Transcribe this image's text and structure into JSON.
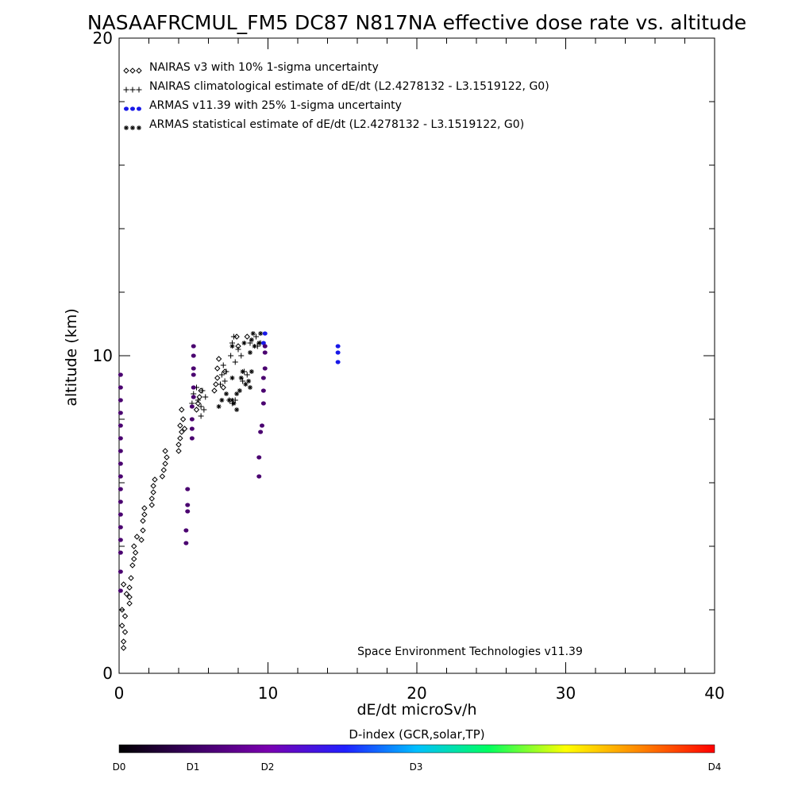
{
  "chart_data": {
    "type": "scatter",
    "title": "NASAAFRCMUL_FM5 DC87 N817NA effective dose rate vs. altitude",
    "xlabel": "dE/dt microSv/h",
    "ylabel": "altitude (km)",
    "xlim": [
      0,
      40
    ],
    "ylim": [
      0,
      20
    ],
    "x_ticks": [
      0,
      10,
      20,
      30,
      40
    ],
    "y_ticks": [
      0,
      10,
      20
    ],
    "grid": false,
    "legend_position": "top-left",
    "credit": "Space Environment Technologies v11.39",
    "colorbar": {
      "title": "D-index (GCR,solar,TP)",
      "labels": [
        {
          "text": "D0",
          "value": 0
        },
        {
          "text": "D1",
          "value": 1
        },
        {
          "text": "D2",
          "value": 2
        },
        {
          "text": "D3",
          "value": 3
        },
        {
          "text": "D4",
          "value": 4
        }
      ],
      "colors": [
        "#000000",
        "#7a00b0",
        "#2020ff",
        "#00c0ff",
        "#00ff60",
        "#ffff00",
        "#ff6000",
        "#ff0000"
      ]
    },
    "series": [
      {
        "name": "NAIRAS v3 with 10% 1-sigma uncertainty",
        "marker": "diamond",
        "color": "#000000",
        "points": [
          [
            0.3,
            0.8
          ],
          [
            0.3,
            1.0
          ],
          [
            0.4,
            1.3
          ],
          [
            0.2,
            1.5
          ],
          [
            0.4,
            1.8
          ],
          [
            0.2,
            2.0
          ],
          [
            0.5,
            2.5
          ],
          [
            0.3,
            2.8
          ],
          [
            0.7,
            2.2
          ],
          [
            0.7,
            2.4
          ],
          [
            0.7,
            2.7
          ],
          [
            0.8,
            3.0
          ],
          [
            0.9,
            3.4
          ],
          [
            1.0,
            3.6
          ],
          [
            1.1,
            3.8
          ],
          [
            1.0,
            4.0
          ],
          [
            1.2,
            4.3
          ],
          [
            1.5,
            4.2
          ],
          [
            1.6,
            4.5
          ],
          [
            1.6,
            4.8
          ],
          [
            1.7,
            5.0
          ],
          [
            1.7,
            5.2
          ],
          [
            2.2,
            5.3
          ],
          [
            2.2,
            5.5
          ],
          [
            2.3,
            5.7
          ],
          [
            2.3,
            5.9
          ],
          [
            2.4,
            6.1
          ],
          [
            2.9,
            6.2
          ],
          [
            3.0,
            6.4
          ],
          [
            3.1,
            6.6
          ],
          [
            3.2,
            6.8
          ],
          [
            3.1,
            7.0
          ],
          [
            4.0,
            7.0
          ],
          [
            4.0,
            7.2
          ],
          [
            4.1,
            7.4
          ],
          [
            4.2,
            7.6
          ],
          [
            4.1,
            7.8
          ],
          [
            4.3,
            8.0
          ],
          [
            4.2,
            8.3
          ],
          [
            4.4,
            7.7
          ],
          [
            5.2,
            8.3
          ],
          [
            5.3,
            8.5
          ],
          [
            5.4,
            8.7
          ],
          [
            5.5,
            8.9
          ],
          [
            6.4,
            8.9
          ],
          [
            6.5,
            9.1
          ],
          [
            6.6,
            9.3
          ],
          [
            6.6,
            9.6
          ],
          [
            6.7,
            9.9
          ],
          [
            7.0,
            9.0
          ],
          [
            7.1,
            9.5
          ],
          [
            7.9,
            10.6
          ],
          [
            8.0,
            10.3
          ],
          [
            8.6,
            10.6
          ]
        ]
      },
      {
        "name": "NAIRAS climatological estimate of dE/dt (L2.4278132 - L3.1519122, G0)",
        "marker": "plus",
        "color": "#000000",
        "points": [
          [
            4.9,
            8.5
          ],
          [
            5.0,
            8.8
          ],
          [
            5.2,
            9.0
          ],
          [
            5.3,
            8.6
          ],
          [
            5.5,
            8.4
          ],
          [
            5.6,
            8.9
          ],
          [
            5.8,
            8.7
          ],
          [
            5.5,
            8.1
          ],
          [
            5.7,
            8.3
          ],
          [
            6.8,
            9.1
          ],
          [
            6.9,
            9.4
          ],
          [
            7.0,
            9.7
          ],
          [
            7.1,
            9.2
          ],
          [
            7.2,
            9.5
          ],
          [
            7.5,
            10.0
          ],
          [
            7.6,
            10.4
          ],
          [
            7.7,
            10.6
          ],
          [
            7.8,
            9.8
          ],
          [
            8.0,
            10.2
          ],
          [
            8.2,
            10.0
          ],
          [
            8.3,
            9.2
          ],
          [
            8.4,
            9.5
          ],
          [
            8.6,
            9.4
          ],
          [
            8.8,
            10.4
          ],
          [
            9.2,
            10.6
          ],
          [
            9.3,
            10.3
          ],
          [
            9.5,
            10.4
          ],
          [
            7.4,
            8.6
          ],
          [
            7.6,
            8.5
          ],
          [
            7.8,
            8.6
          ]
        ]
      },
      {
        "name": "ARMAS v11.39 with 25% 1-sigma uncertainty",
        "marker": "dot",
        "color": "#1818e8",
        "points": [
          [
            14.7,
            9.8
          ],
          [
            14.7,
            10.1
          ],
          [
            14.7,
            10.3
          ],
          [
            9.7,
            10.4
          ],
          [
            9.8,
            10.7
          ]
        ]
      },
      {
        "name": "ARMAS statistical estimate of dE/dt (L2.4278132 - L3.1519122, G0)",
        "marker": "asterisk",
        "color": "#000000",
        "points": [
          [
            6.7,
            8.4
          ],
          [
            6.9,
            8.6
          ],
          [
            7.2,
            8.8
          ],
          [
            7.4,
            8.6
          ],
          [
            7.6,
            8.6
          ],
          [
            7.7,
            8.5
          ],
          [
            7.9,
            8.3
          ],
          [
            7.9,
            8.8
          ],
          [
            8.1,
            8.9
          ],
          [
            8.2,
            9.3
          ],
          [
            8.3,
            9.5
          ],
          [
            8.5,
            9.1
          ],
          [
            8.7,
            9.2
          ],
          [
            8.9,
            9.5
          ],
          [
            8.8,
            10.1
          ],
          [
            8.9,
            10.5
          ],
          [
            9.0,
            10.7
          ],
          [
            9.1,
            10.3
          ],
          [
            9.4,
            10.4
          ],
          [
            9.5,
            10.7
          ],
          [
            7.6,
            9.3
          ],
          [
            8.8,
            9.0
          ],
          [
            7.6,
            10.3
          ],
          [
            8.4,
            10.4
          ]
        ]
      },
      {
        "name": "",
        "marker": "dot",
        "color": "#4a0070",
        "points": [
          [
            0.1,
            2.6
          ],
          [
            0.1,
            3.2
          ],
          [
            0.1,
            3.8
          ],
          [
            0.1,
            4.2
          ],
          [
            0.1,
            4.6
          ],
          [
            0.1,
            5.0
          ],
          [
            0.1,
            5.4
          ],
          [
            0.1,
            5.8
          ],
          [
            0.1,
            6.2
          ],
          [
            0.1,
            6.6
          ],
          [
            0.1,
            7.0
          ],
          [
            0.1,
            7.4
          ],
          [
            0.1,
            7.8
          ],
          [
            0.1,
            8.2
          ],
          [
            0.1,
            8.6
          ],
          [
            0.1,
            9.0
          ],
          [
            0.1,
            9.4
          ],
          [
            4.5,
            4.1
          ],
          [
            4.5,
            4.5
          ],
          [
            4.6,
            5.1
          ],
          [
            4.6,
            5.3
          ],
          [
            4.6,
            5.8
          ],
          [
            4.9,
            7.4
          ],
          [
            4.9,
            7.7
          ],
          [
            4.9,
            8.0
          ],
          [
            4.9,
            8.4
          ],
          [
            5.0,
            8.7
          ],
          [
            5.0,
            9.0
          ],
          [
            5.0,
            9.4
          ],
          [
            5.0,
            9.6
          ],
          [
            5.0,
            10.0
          ],
          [
            5.0,
            10.3
          ],
          [
            9.4,
            6.2
          ],
          [
            9.4,
            6.8
          ],
          [
            9.5,
            7.6
          ],
          [
            9.6,
            7.8
          ],
          [
            9.7,
            8.5
          ],
          [
            9.7,
            8.9
          ],
          [
            9.7,
            9.3
          ],
          [
            9.8,
            9.6
          ],
          [
            9.8,
            10.1
          ],
          [
            9.8,
            10.3
          ]
        ]
      }
    ]
  }
}
